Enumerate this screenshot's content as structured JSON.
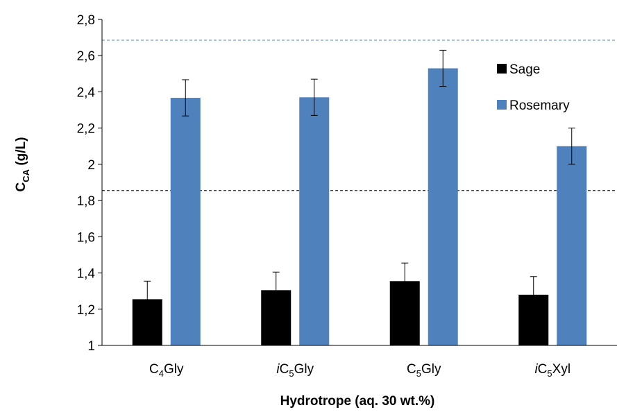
{
  "chart_data": {
    "type": "bar",
    "categories": [
      {
        "prefix": "",
        "base": "C",
        "sub": "4",
        "suffix": "Gly"
      },
      {
        "prefix": "i",
        "base": "C",
        "sub": "5",
        "suffix": "Gly"
      },
      {
        "prefix": "",
        "base": "C",
        "sub": "5",
        "suffix": "Gly"
      },
      {
        "prefix": "i",
        "base": "C",
        "sub": "5",
        "suffix": "Xyl"
      }
    ],
    "series": [
      {
        "name": "Sage",
        "color": "#000000",
        "values": [
          1.255,
          1.305,
          1.355,
          1.28
        ],
        "errors": [
          0.1,
          0.1,
          0.1,
          0.1
        ]
      },
      {
        "name": "Rosemary",
        "color": "#4f81bd",
        "values": [
          2.367,
          2.37,
          2.53,
          2.1
        ],
        "errors": [
          0.1,
          0.1,
          0.1,
          0.1
        ]
      }
    ],
    "reference_lines": [
      {
        "value": 2.685,
        "color": "#4f81bd",
        "style": "dashed"
      },
      {
        "value": 1.855,
        "color": "#000000",
        "style": "dashed"
      }
    ],
    "ylim": [
      1,
      2.8
    ],
    "yticks": [
      "1",
      "1,2",
      "1,4",
      "1,6",
      "1,8",
      "2",
      "2,2",
      "2,4",
      "2,6",
      "2,8"
    ],
    "ytick_values": [
      1,
      1.2,
      1.4,
      1.6,
      1.8,
      2.0,
      2.2,
      2.4,
      2.6,
      2.8
    ],
    "ylabel": {
      "base": "C",
      "sub": "CA",
      "rest": " (g/L)"
    },
    "xlabel": "Hydrotrope (aq. 30 wt.%)",
    "legend_position": "top-right",
    "grid": false
  }
}
